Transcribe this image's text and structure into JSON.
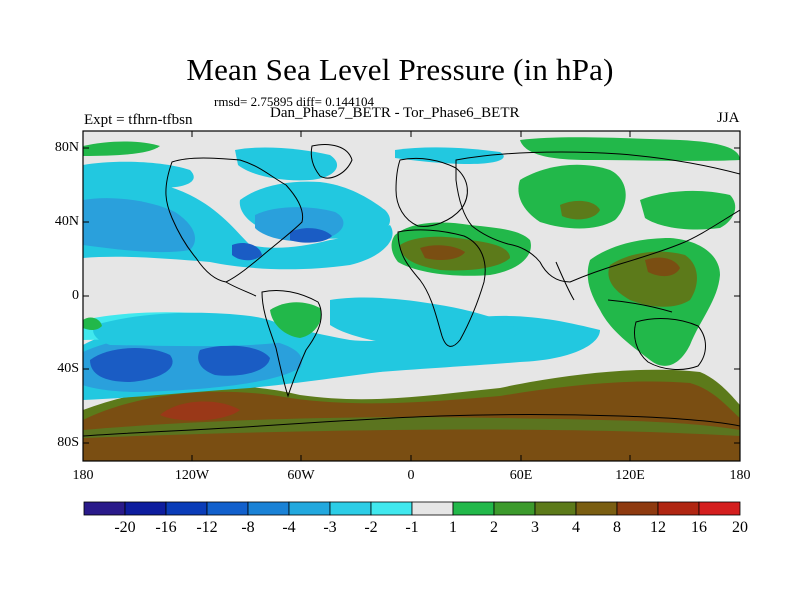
{
  "title": "Mean Sea Level Pressure (in hPa)",
  "stats": "rmsd= 2.75895 diff= 0.144104",
  "subtitle": "Dan_Phase7_BETR - Tor_Phase6_BETR",
  "experiment": "Expt = tfhrn-tfbsn",
  "season": "JJA",
  "lat_ticks": [
    "80N",
    "40N",
    "0",
    "40S",
    "80S"
  ],
  "lon_ticks": [
    "180",
    "120W",
    "60W",
    "0",
    "60E",
    "120E",
    "180"
  ],
  "colorbar": {
    "labels": [
      "-20",
      "-16",
      "-12",
      "-8",
      "-4",
      "-3",
      "-2",
      "-1",
      "1",
      "2",
      "3",
      "4",
      "8",
      "12",
      "16",
      "20"
    ],
    "colors": [
      "#2a1a8a",
      "#0e1d9e",
      "#0a3cb8",
      "#1260cc",
      "#1a82d6",
      "#22a8de",
      "#2ccde6",
      "#40e8ee",
      "#e6e6e6",
      "#22b84a",
      "#3c9a2c",
      "#5c7a1a",
      "#7a5e12",
      "#8e3a10",
      "#b02612",
      "#d41e1e"
    ]
  },
  "colors": {
    "neutral": "#e6e6e6",
    "blue_light": "#22c8e0",
    "blue_mid": "#2aa0dc",
    "blue_dark": "#1a5cc4",
    "green": "#22b84a",
    "olive": "#5c7a1a",
    "brown": "#7a4e12",
    "red_brown": "#9a3818"
  }
}
